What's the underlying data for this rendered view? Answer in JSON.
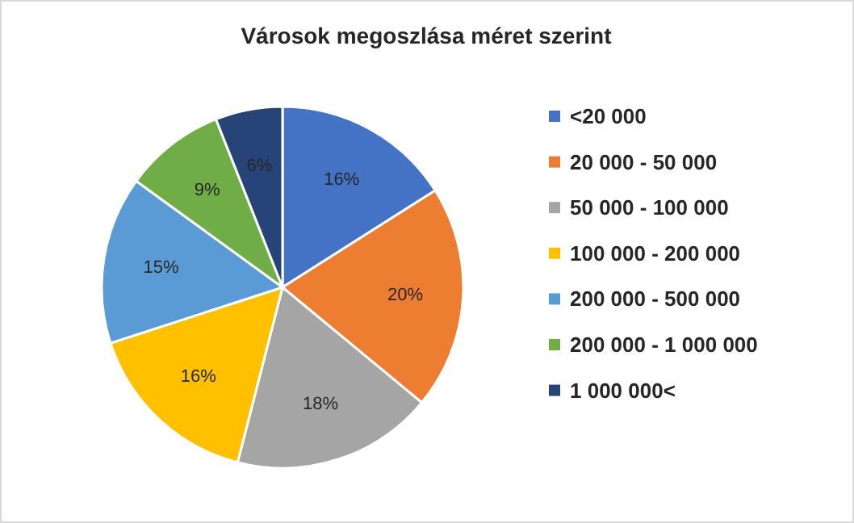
{
  "chart_data": {
    "type": "pie",
    "title": "Városok megoszlása méret szerint",
    "categories": [
      "<20 000",
      "20 000 - 50 000",
      "50 000 - 100 000",
      "100 000 - 200 000",
      "200 000 - 500 000",
      "200 000 - 1 000 000",
      "1 000 000<"
    ],
    "values": [
      16,
      20,
      18,
      16,
      15,
      9,
      6
    ],
    "colors": [
      "#4472c4",
      "#ed7d31",
      "#a5a5a5",
      "#ffc000",
      "#5b9bd5",
      "#70ad47",
      "#264478"
    ],
    "value_labels": [
      "16%",
      "20%",
      "18%",
      "16%",
      "15%",
      "9%",
      "6%"
    ],
    "legend": "right"
  }
}
